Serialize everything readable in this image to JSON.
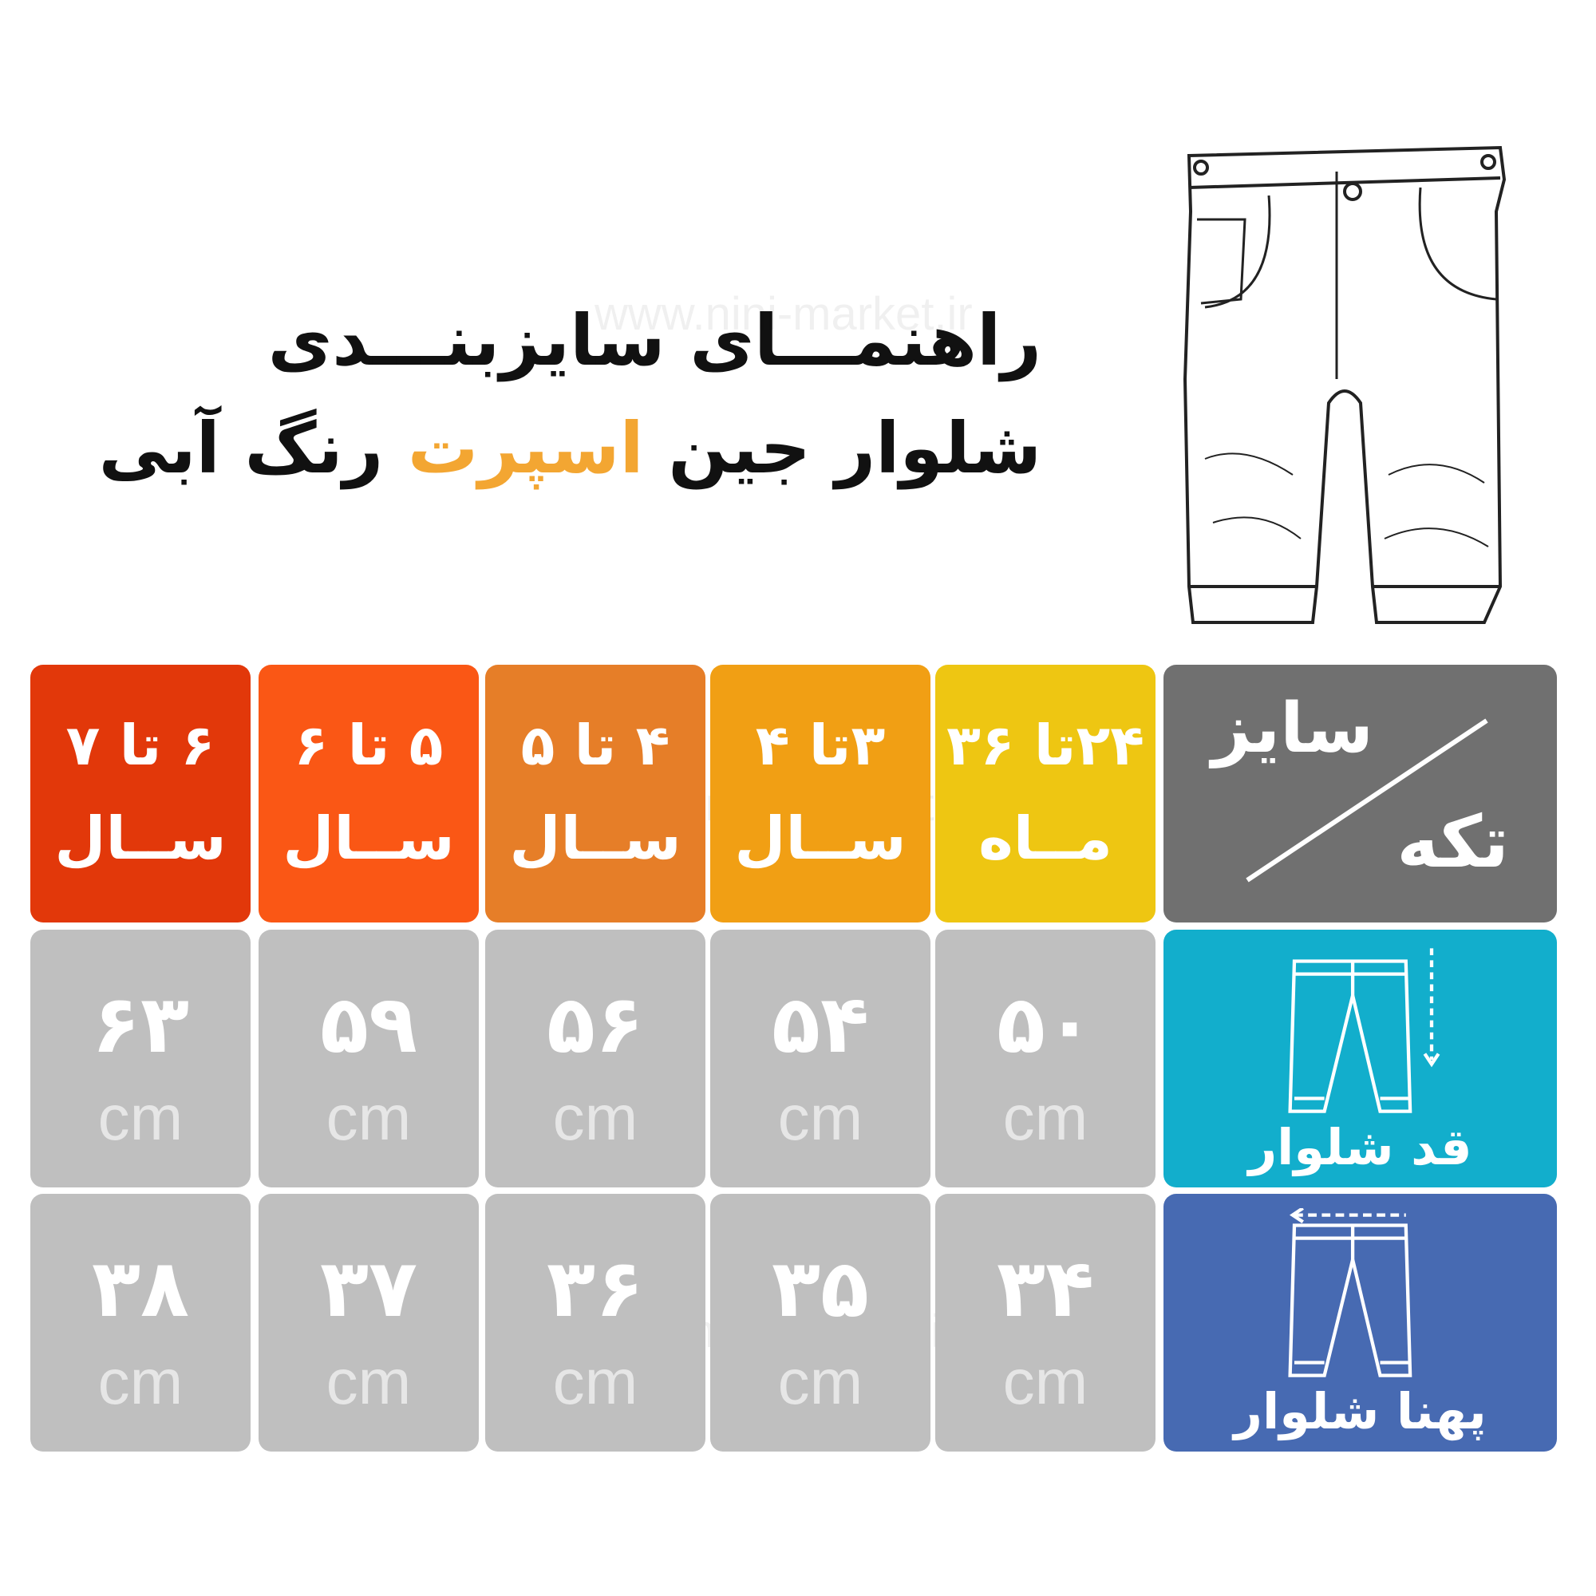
{
  "title": {
    "line1": "راهنمـــای سایزبنـــدی",
    "line2_part1": "شلوار جین",
    "line2_accent": "اسپرت",
    "line2_part2": "رنگ آبی",
    "accent_color": "#f3a632"
  },
  "watermark": "www.nini-market.ir",
  "illustration": "jeans-line-drawing",
  "table": {
    "corner": {
      "top": "سایز",
      "bottom": "تکه",
      "color": "#707070"
    },
    "sizes": [
      {
        "line1": "۲۴تا ۳۶",
        "line2": "مــاه",
        "color": "#eec612"
      },
      {
        "line1": "۳تا ۴",
        "line2": "ســال",
        "color": "#f19f14"
      },
      {
        "line1": "۴ تا ۵",
        "line2": "ســال",
        "color": "#e67e28"
      },
      {
        "line1": "۵ تا ۶",
        "line2": "ســال",
        "color": "#fa5715"
      },
      {
        "line1": "۶ تا ۷",
        "line2": "ســال",
        "color": "#e2380a"
      }
    ],
    "rows": [
      {
        "label": "قد شلوار",
        "icon": "pants-length-icon",
        "color": "#12aecc",
        "unit": "cm",
        "values": [
          "۵۰",
          "۵۴",
          "۵۶",
          "۵۹",
          "۶۳"
        ]
      },
      {
        "label": "پهنا شلوار",
        "icon": "pants-width-icon",
        "color": "#476ab2",
        "unit": "cm",
        "values": [
          "۳۴",
          "۳۵",
          "۳۶",
          "۳۷",
          "۳۸"
        ]
      }
    ]
  }
}
